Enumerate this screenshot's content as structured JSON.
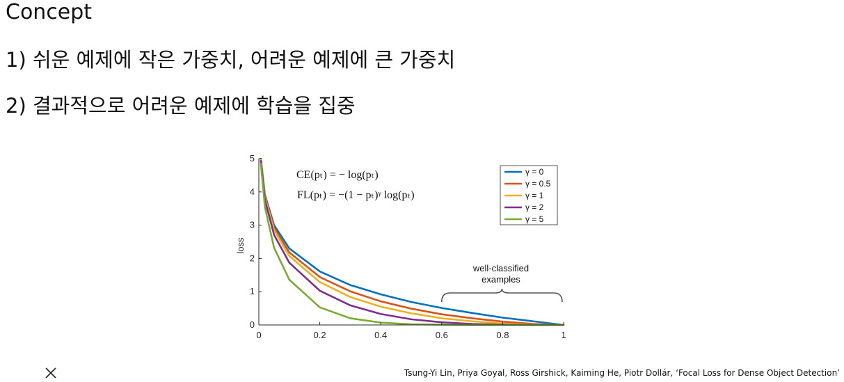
{
  "slide": {
    "title": "Concept",
    "bullets": [
      "1) 쉬운 예제에 작은 가중치, 어려운 예제에 큰 가중치",
      "2) 결과적으로 어려운 예제에 학습을 집중"
    ],
    "citation": "Tsung-Yi Lin, Priya Goyal, Ross Girshick, Kaiming He, Piotr Dollár, ‘Focal Loss for Dense Object Detection’",
    "close_icon": "close-icon"
  },
  "chart_data": {
    "type": "line",
    "title": "",
    "xlabel": "",
    "ylabel": "loss",
    "xlim": [
      0,
      1
    ],
    "ylim": [
      0,
      5
    ],
    "xticks": [
      "0",
      "0.2",
      "0.4",
      "0.6",
      "0.8",
      "1"
    ],
    "yticks": [
      "0",
      "1",
      "2",
      "3",
      "4",
      "5"
    ],
    "grid": false,
    "legend_position": "top-right",
    "formulas": [
      "CE(pₜ) = − log(pₜ)",
      "FL(pₜ) = −(1 − pₜ)ᵞ log(pₜ)"
    ],
    "annotation": {
      "lines": [
        "well-classified",
        "examples"
      ],
      "x_range": [
        0.6,
        1.0
      ]
    },
    "series": [
      {
        "name": "γ = 0",
        "gamma": 0,
        "color": "#0072BD"
      },
      {
        "name": "γ = 0.5",
        "gamma": 0.5,
        "color": "#D95319"
      },
      {
        "name": "γ = 1",
        "gamma": 1,
        "color": "#EDB120"
      },
      {
        "name": "γ = 2",
        "gamma": 2,
        "color": "#7E2F8E"
      },
      {
        "name": "γ = 5",
        "gamma": 5,
        "color": "#77AC30"
      }
    ],
    "x": [
      0.0067,
      0.02,
      0.05,
      0.1,
      0.2,
      0.3,
      0.4,
      0.5,
      0.6,
      0.7,
      0.8,
      0.9,
      1.0
    ],
    "values": {
      "gamma_0": [
        5.0,
        3.91,
        3.0,
        2.3,
        1.61,
        1.2,
        0.92,
        0.69,
        0.51,
        0.36,
        0.22,
        0.11,
        0.0
      ],
      "gamma_0_5": [
        4.98,
        3.87,
        2.92,
        2.18,
        1.44,
        1.01,
        0.71,
        0.49,
        0.32,
        0.2,
        0.1,
        0.03,
        0.0
      ],
      "gamma_1": [
        4.97,
        3.83,
        2.85,
        2.07,
        1.29,
        0.84,
        0.55,
        0.35,
        0.2,
        0.11,
        0.04,
        0.01,
        0.0
      ],
      "gamma_2": [
        4.93,
        3.76,
        2.71,
        1.87,
        1.03,
        0.59,
        0.33,
        0.17,
        0.08,
        0.03,
        0.01,
        0.0,
        0.0
      ],
      "gamma_5": [
        4.84,
        3.54,
        2.32,
        1.36,
        0.53,
        0.2,
        0.07,
        0.02,
        0.01,
        0.0,
        0.0,
        0.0,
        0.0
      ]
    }
  }
}
